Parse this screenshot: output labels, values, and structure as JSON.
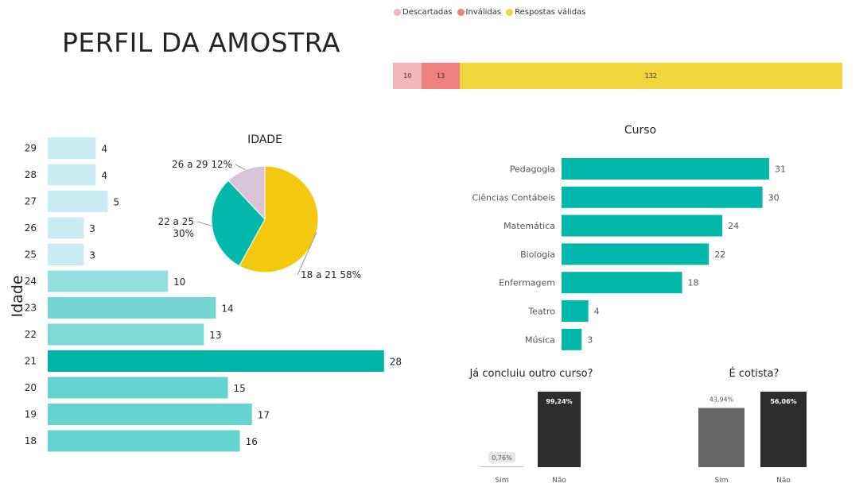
{
  "title": "PERFIL DA AMOSTRA",
  "response_status": {
    "legend": [
      {
        "label": "Descartadas",
        "color": "#F3B6B6"
      },
      {
        "label": "Inválidas",
        "color": "#F08080"
      },
      {
        "label": "Respostas válidas",
        "color": "#F2D43D"
      }
    ]
  },
  "chart_data": [
    {
      "type": "bar",
      "orientation": "horizontal",
      "stacked": true,
      "categories": [
        "Descartadas",
        "Inválidas",
        "Respostas válidas"
      ],
      "values": [
        10,
        13,
        132
      ],
      "colors": [
        "#F3B6B6",
        "#F08080",
        "#F2D43D"
      ],
      "legend": "top-left"
    },
    {
      "type": "bar",
      "orientation": "horizontal",
      "ylabel": "Idade",
      "categories": [
        "29",
        "28",
        "27",
        "26",
        "25",
        "24",
        "23",
        "22",
        "21",
        "20",
        "19",
        "18"
      ],
      "values": [
        4,
        4,
        5,
        3,
        3,
        10,
        14,
        13,
        28,
        15,
        17,
        16
      ],
      "colors": [
        "#C9ECF3",
        "#C9ECF3",
        "#C9ECF3",
        "#C9ECF3",
        "#C9ECF3",
        "#94DEDF",
        "#74D5D3",
        "#7ED8D6",
        "#00B5A8",
        "#65D3CF",
        "#65D3CF",
        "#65D3CF"
      ]
    },
    {
      "type": "pie",
      "title": "IDADE",
      "slices": [
        {
          "label": "18 a 21",
          "percent": "58%",
          "value": 58,
          "color": "#F2C811"
        },
        {
          "label": "22 a 25",
          "percent": "30%",
          "value": 30,
          "color": "#01B8AA"
        },
        {
          "label": "26 a 29",
          "percent": "12%",
          "value": 12,
          "color": "#D9C4D8"
        }
      ]
    },
    {
      "type": "bar",
      "orientation": "horizontal",
      "title": "Curso",
      "categories": [
        "Pedagogia",
        "Ciências Contábeis",
        "Matemática",
        "Biologia",
        "Enfermagem",
        "Teatro",
        "Música"
      ],
      "values": [
        31,
        30,
        24,
        22,
        18,
        4,
        3
      ],
      "color": "#01B8AA"
    },
    {
      "type": "bar",
      "title": "Já concluiu outro curso?",
      "categories": [
        "Sim",
        "Não"
      ],
      "values": [
        0.76,
        99.24
      ],
      "labels": [
        "0,76%",
        "99,24%"
      ],
      "colors": [
        "#BDBDBD",
        "#2D2D2D"
      ]
    },
    {
      "type": "bar",
      "title": "É cotista?",
      "categories": [
        "Sim",
        "Não"
      ],
      "values": [
        43.94,
        56.06
      ],
      "labels": [
        "43,94%",
        "56,06%"
      ],
      "colors": [
        "#666666",
        "#2D2D2D"
      ]
    }
  ]
}
